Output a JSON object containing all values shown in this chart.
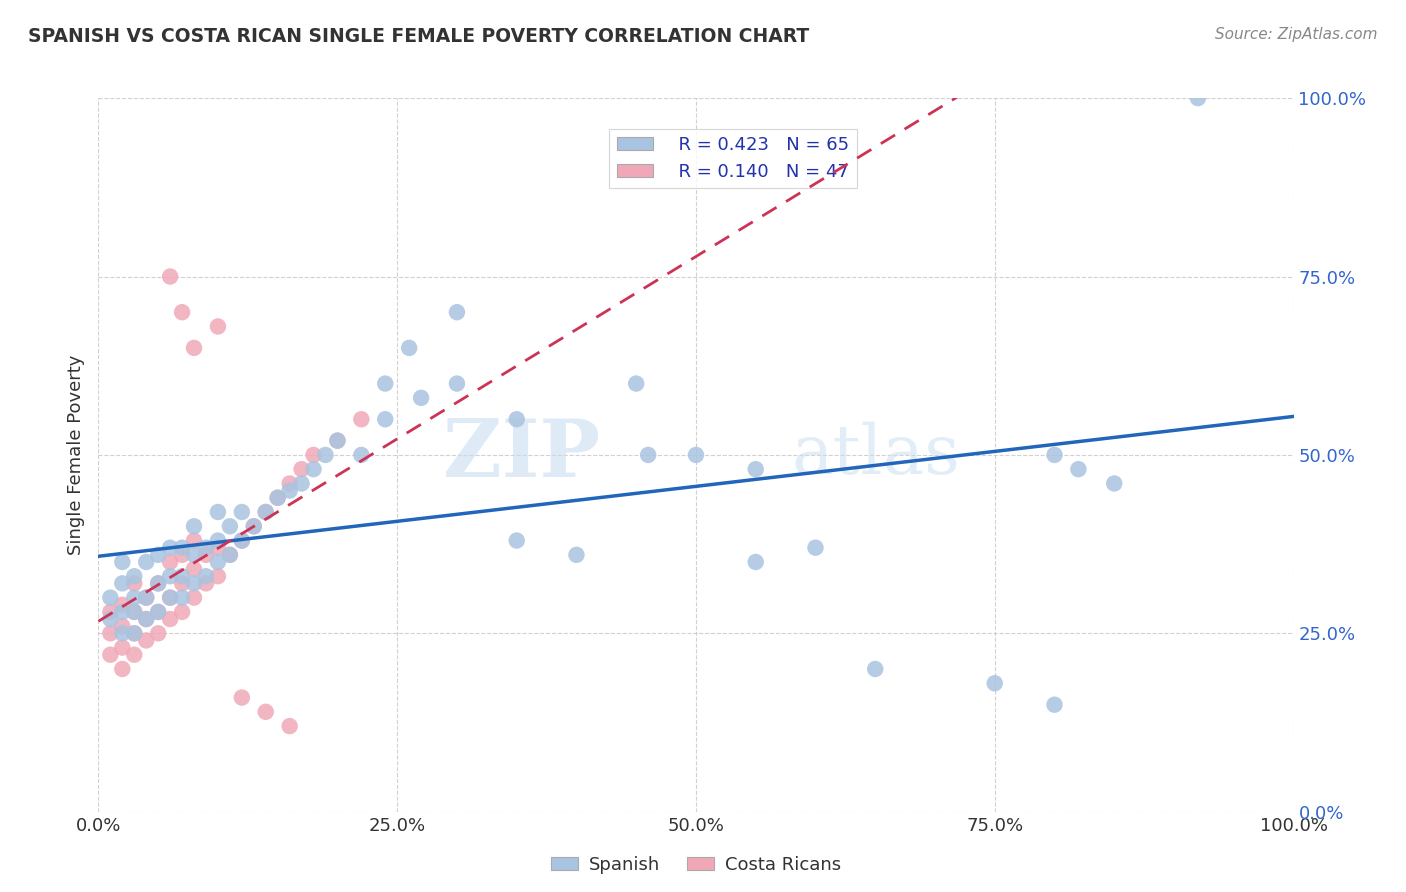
{
  "title": "SPANISH VS COSTA RICAN SINGLE FEMALE POVERTY CORRELATION CHART",
  "source": "Source: ZipAtlas.com",
  "ylabel": "Single Female Poverty",
  "xlim": [
    0,
    1
  ],
  "ylim": [
    0,
    1
  ],
  "xticks": [
    0.0,
    0.25,
    0.5,
    0.75,
    1.0
  ],
  "yticks": [
    0.0,
    0.25,
    0.5,
    0.75,
    1.0
  ],
  "xticklabels": [
    "0.0%",
    "25.0%",
    "50.0%",
    "75.0%",
    "100.0%"
  ],
  "yticklabels": [
    "0.0%",
    "25.0%",
    "50.0%",
    "75.0%",
    "100.0%"
  ],
  "spanish_color": "#a8c4e0",
  "costarican_color": "#f0a8b8",
  "spanish_line_color": "#2266bb",
  "costarican_line_color": "#cc3355",
  "watermark_zip": "ZIP",
  "watermark_atlas": "atlas",
  "legend_r_spanish": "R = 0.423",
  "legend_n_spanish": "N = 65",
  "legend_r_costarican": "R = 0.140",
  "legend_n_costarican": "N = 47",
  "spanish_x": [
    0.01,
    0.01,
    0.02,
    0.02,
    0.02,
    0.02,
    0.03,
    0.03,
    0.03,
    0.03,
    0.04,
    0.04,
    0.04,
    0.05,
    0.05,
    0.05,
    0.06,
    0.06,
    0.06,
    0.07,
    0.07,
    0.07,
    0.08,
    0.08,
    0.08,
    0.09,
    0.09,
    0.1,
    0.1,
    0.1,
    0.11,
    0.11,
    0.12,
    0.12,
    0.13,
    0.14,
    0.15,
    0.16,
    0.17,
    0.18,
    0.19,
    0.2,
    0.22,
    0.24,
    0.27,
    0.3,
    0.35,
    0.4,
    0.46,
    0.55,
    0.6,
    0.65,
    0.75,
    0.8,
    0.92,
    0.24,
    0.26,
    0.3,
    0.35,
    0.45,
    0.5,
    0.55,
    0.8,
    0.82,
    0.85
  ],
  "spanish_y": [
    0.27,
    0.3,
    0.25,
    0.28,
    0.32,
    0.35,
    0.25,
    0.28,
    0.3,
    0.33,
    0.27,
    0.3,
    0.35,
    0.28,
    0.32,
    0.36,
    0.3,
    0.33,
    0.37,
    0.3,
    0.33,
    0.37,
    0.32,
    0.36,
    0.4,
    0.33,
    0.37,
    0.35,
    0.38,
    0.42,
    0.36,
    0.4,
    0.38,
    0.42,
    0.4,
    0.42,
    0.44,
    0.45,
    0.46,
    0.48,
    0.5,
    0.52,
    0.5,
    0.55,
    0.58,
    0.6,
    0.38,
    0.36,
    0.5,
    0.35,
    0.37,
    0.2,
    0.18,
    0.15,
    1.0,
    0.6,
    0.65,
    0.7,
    0.55,
    0.6,
    0.5,
    0.48,
    0.5,
    0.48,
    0.46
  ],
  "costarican_x": [
    0.01,
    0.01,
    0.01,
    0.02,
    0.02,
    0.02,
    0.02,
    0.03,
    0.03,
    0.03,
    0.03,
    0.04,
    0.04,
    0.04,
    0.05,
    0.05,
    0.05,
    0.06,
    0.06,
    0.06,
    0.07,
    0.07,
    0.07,
    0.08,
    0.08,
    0.08,
    0.09,
    0.09,
    0.1,
    0.1,
    0.11,
    0.12,
    0.13,
    0.14,
    0.15,
    0.16,
    0.17,
    0.18,
    0.2,
    0.22,
    0.06,
    0.07,
    0.08,
    0.1,
    0.12,
    0.14,
    0.16
  ],
  "costarican_y": [
    0.22,
    0.25,
    0.28,
    0.2,
    0.23,
    0.26,
    0.29,
    0.22,
    0.25,
    0.28,
    0.32,
    0.24,
    0.27,
    0.3,
    0.25,
    0.28,
    0.32,
    0.27,
    0.3,
    0.35,
    0.28,
    0.32,
    0.36,
    0.3,
    0.34,
    0.38,
    0.32,
    0.36,
    0.33,
    0.37,
    0.36,
    0.38,
    0.4,
    0.42,
    0.44,
    0.46,
    0.48,
    0.5,
    0.52,
    0.55,
    0.75,
    0.7,
    0.65,
    0.68,
    0.16,
    0.14,
    0.12
  ]
}
